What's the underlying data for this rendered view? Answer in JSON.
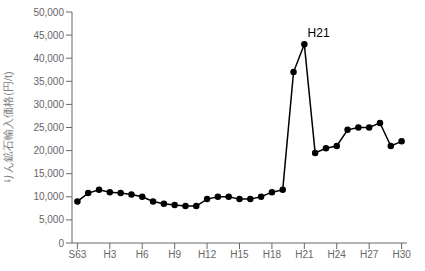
{
  "chart_data": {
    "type": "line",
    "ylabel": "りん鉱石輸入価格(円/t)",
    "x": [
      0,
      1,
      2,
      3,
      4,
      5,
      6,
      7,
      8,
      9,
      10,
      11,
      12,
      13,
      14,
      15,
      16,
      17,
      18,
      19,
      20,
      21,
      22,
      23,
      24,
      25,
      26,
      27,
      28,
      29,
      30
    ],
    "values": [
      9000,
      10800,
      11500,
      11000,
      10800,
      10500,
      10000,
      9000,
      8500,
      8200,
      8000,
      8000,
      9500,
      10000,
      10000,
      9500,
      9500,
      10000,
      11000,
      11500,
      37000,
      43000,
      19500,
      20500,
      21000,
      24500,
      25000,
      25000,
      26000,
      21000,
      22000
    ],
    "color": "#000000",
    "marker": "circle",
    "xlim": [
      -0.5,
      30.5
    ],
    "xticks": [
      {
        "value": 0,
        "label": "S63"
      },
      {
        "value": 3,
        "label": "H3"
      },
      {
        "value": 6,
        "label": "H6"
      },
      {
        "value": 9,
        "label": "H9"
      },
      {
        "value": 12,
        "label": "H12"
      },
      {
        "value": 15,
        "label": "H15"
      },
      {
        "value": 18,
        "label": "H18"
      },
      {
        "value": 21,
        "label": "H21"
      },
      {
        "value": 24,
        "label": "H24"
      },
      {
        "value": 27,
        "label": "H27"
      },
      {
        "value": 30,
        "label": "H30"
      }
    ],
    "ylim": [
      0,
      50000
    ],
    "yticks": [
      0,
      {
        "value": 5000,
        "label": "5,000"
      },
      {
        "value": 10000,
        "label": "10,000"
      },
      {
        "value": 15000,
        "label": "15,000"
      },
      {
        "value": 20000,
        "label": "20,000"
      },
      {
        "value": 25000,
        "label": "25,000"
      },
      {
        "value": 30000,
        "label": "30,000"
      },
      {
        "value": 35000,
        "label": "35,000"
      },
      {
        "value": 40000,
        "label": "40,000"
      },
      {
        "value": 45000,
        "label": "45,000"
      },
      {
        "value": 50000,
        "label": "50,000"
      }
    ],
    "annotations": [
      {
        "text": "H21",
        "x": 21.3,
        "y": 45500
      }
    ],
    "grid": false
  }
}
